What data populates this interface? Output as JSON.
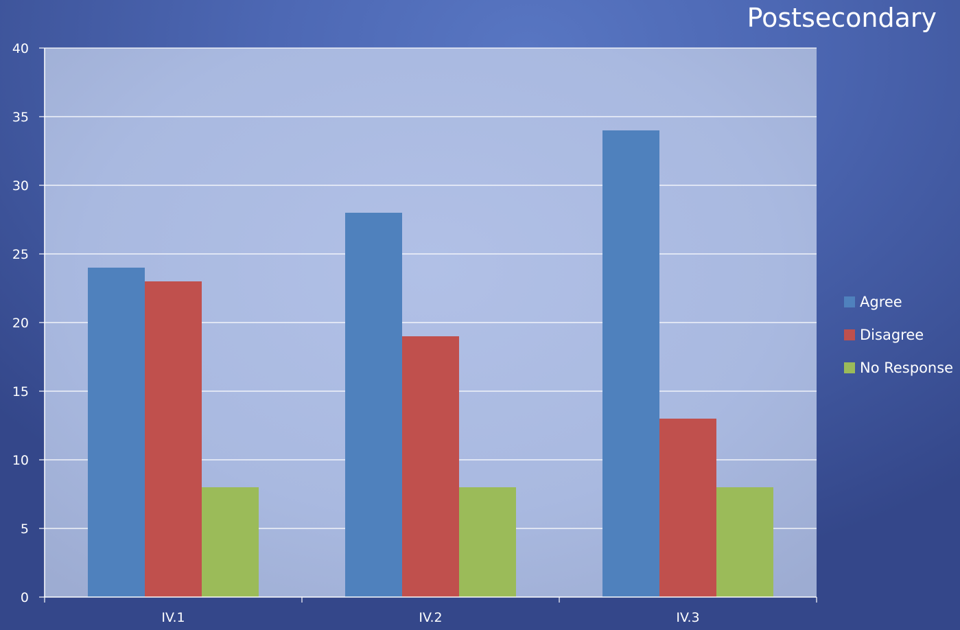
{
  "slide": {
    "title": "Postsecondary"
  },
  "colors": {
    "agree": "#4f81bd",
    "disagree": "#c0504d",
    "no_response": "#9bbb59"
  },
  "chart_data": {
    "type": "bar",
    "categories": [
      "IV.1",
      "IV.2",
      "IV.3"
    ],
    "series": [
      {
        "name": "Agree",
        "values": [
          24,
          28,
          34
        ],
        "color": "#4f81bd"
      },
      {
        "name": "Disagree",
        "values": [
          23,
          19,
          13
        ],
        "color": "#c0504d"
      },
      {
        "name": "No Response",
        "values": [
          8,
          8,
          8
        ],
        "color": "#9bbb59"
      }
    ],
    "ylim": [
      0,
      40
    ],
    "yticks": [
      0,
      5,
      10,
      15,
      20,
      25,
      30,
      35,
      40
    ],
    "grid": true,
    "legend_position": "right"
  }
}
